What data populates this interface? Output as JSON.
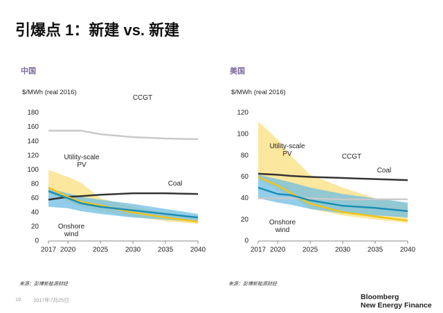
{
  "slide": {
    "title": "引爆点 1：新建 vs. 新建",
    "page": "19",
    "date": "2017年7月25日",
    "logo": [
      "Bloomberg",
      "New Energy Finance"
    ]
  },
  "chart_data": [
    {
      "type": "line",
      "title": "中国",
      "ylabel": "$/MWh (real 2016)",
      "source": "来源：彭博新能源财经",
      "x": [
        2017,
        2020,
        2022,
        2025,
        2030,
        2035,
        2040
      ],
      "xlim": [
        2017,
        2040
      ],
      "xticks": [
        2017,
        2020,
        2025,
        2030,
        2035,
        2040
      ],
      "ylim": [
        0,
        180
      ],
      "yticks": [
        0,
        20,
        40,
        60,
        80,
        100,
        120,
        140,
        160,
        180
      ],
      "grid": false,
      "series": [
        {
          "name": "CCGT",
          "color": "#c9c9c9",
          "values": [
            155,
            155,
            155,
            150,
            146,
            144,
            143
          ]
        },
        {
          "name": "Coal",
          "color": "#333333",
          "values": [
            58,
            62,
            63,
            65,
            67,
            67,
            66
          ]
        },
        {
          "name": "Utility-scale PV",
          "color": "#f0c419",
          "band_color": "#fbdf7e",
          "values": [
            75,
            62,
            55,
            50,
            40,
            33,
            27
          ],
          "high": [
            100,
            90,
            82,
            60,
            48,
            40,
            32
          ],
          "low": [
            68,
            55,
            48,
            42,
            34,
            28,
            24
          ]
        },
        {
          "name": "Onshore wind",
          "color": "#1b8db3",
          "band_color": "#6dbde3",
          "values": [
            70,
            60,
            53,
            48,
            43,
            38,
            33
          ],
          "high": [
            74,
            67,
            62,
            58,
            52,
            45,
            38
          ],
          "low": [
            48,
            46,
            42,
            38,
            33,
            30,
            27
          ]
        }
      ]
    },
    {
      "type": "line",
      "title": "美国",
      "ylabel": "$/MWh (real 2016)",
      "source": "来源：彭博新能源财经",
      "x": [
        2017,
        2020,
        2022,
        2025,
        2030,
        2035,
        2040
      ],
      "xlim": [
        2017,
        2040
      ],
      "xticks": [
        2017,
        2020,
        2025,
        2030,
        2035,
        2040
      ],
      "ylim": [
        0,
        120
      ],
      "yticks": [
        0,
        20,
        40,
        60,
        80,
        100,
        120
      ],
      "grid": false,
      "series": [
        {
          "name": "CCGT",
          "color": "#c9c9c9",
          "values": [
            40,
            40,
            40,
            40,
            39,
            39,
            39
          ]
        },
        {
          "name": "Coal",
          "color": "#333333",
          "values": [
            63,
            62,
            61,
            60,
            59,
            58,
            57
          ]
        },
        {
          "name": "Utility-scale PV",
          "color": "#f0c419",
          "band_color": "#fbdf7e",
          "values": [
            60,
            52,
            45,
            35,
            27,
            23,
            19
          ],
          "high": [
            112,
            95,
            80,
            62,
            50,
            40,
            35
          ],
          "low": [
            58,
            48,
            42,
            30,
            24,
            20,
            17
          ]
        },
        {
          "name": "Onshore wind",
          "color": "#1b8db3",
          "band_color": "#6dbde3",
          "values": [
            50,
            44,
            43,
            38,
            33,
            31,
            28
          ],
          "high": [
            62,
            58,
            55,
            50,
            44,
            40,
            36
          ],
          "low": [
            40,
            36,
            34,
            30,
            26,
            24,
            22
          ]
        }
      ]
    }
  ]
}
